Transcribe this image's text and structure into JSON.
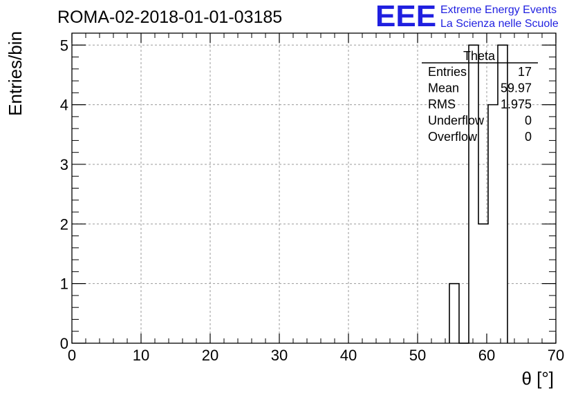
{
  "header": {
    "run_title": "ROMA-02-2018-01-01-03185",
    "logo_text": "EEE",
    "brand_line1": "Extreme Energy Events",
    "brand_line2": "La Scienza nelle Scuole",
    "brand_color": "#1f1fe0"
  },
  "chart_data": {
    "type": "bar",
    "histogram_name": "Theta",
    "xlabel": "θ [°]",
    "ylabel": "Entries/bin",
    "xlim": [
      0,
      70
    ],
    "ylim": [
      0,
      5.2
    ],
    "grid": true,
    "bin_width": 1.4,
    "bins": [
      {
        "x_low": 54.6,
        "x_high": 56.0,
        "count": 1
      },
      {
        "x_low": 56.0,
        "x_high": 57.4,
        "count": 0
      },
      {
        "x_low": 57.4,
        "x_high": 58.8,
        "count": 5
      },
      {
        "x_low": 58.8,
        "x_high": 60.2,
        "count": 2
      },
      {
        "x_low": 60.2,
        "x_high": 61.6,
        "count": 4
      },
      {
        "x_low": 61.6,
        "x_high": 63.0,
        "count": 5
      }
    ],
    "x_ticks": [
      0,
      10,
      20,
      30,
      40,
      50,
      60,
      70
    ],
    "y_ticks": [
      0,
      1,
      2,
      3,
      4,
      5
    ],
    "stats": {
      "title": "Theta",
      "rows": [
        {
          "label": "Entries",
          "value": "17"
        },
        {
          "label": "Mean",
          "value": "59.97"
        },
        {
          "label": "RMS",
          "value": "1.975"
        },
        {
          "label": "Underflow",
          "value": "0"
        },
        {
          "label": "Overflow",
          "value": "0"
        }
      ]
    }
  }
}
